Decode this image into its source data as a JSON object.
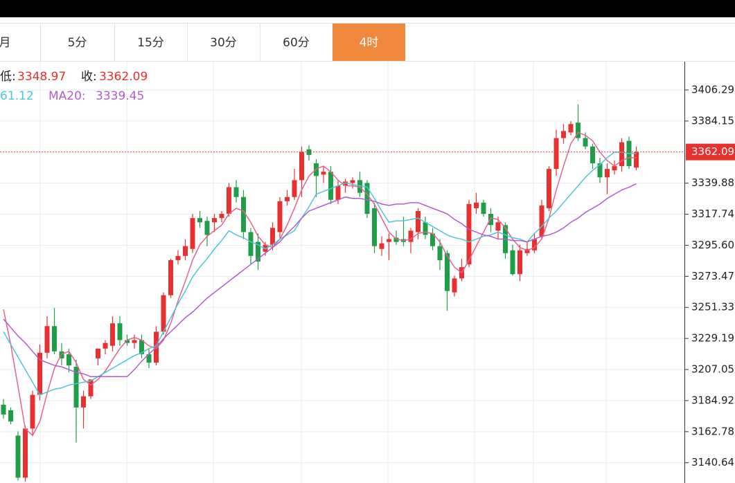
{
  "tabs": [
    "月",
    "5分",
    "15分",
    "30分",
    "60分",
    "4时"
  ],
  "active_tab": 5,
  "chart_data": {
    "type": "candlestick",
    "info": {
      "low_label": "低:",
      "close_label": "收:",
      "ma10_text": "61.12",
      "ma20_label": "MA20:"
    },
    "ylim": [
      3126.2,
      3427.0
    ],
    "yticks": [
      3406.29,
      3384.15,
      3339.88,
      3317.74,
      {
        "value": 3295.6,
        "label": "3295.60"
      },
      3273.47,
      3251.33,
      3229.19,
      3207.05,
      3184.92,
      3162.78,
      3140.64
    ],
    "grid": true,
    "up_color": "#e8312f",
    "down_color": "#1f9e48",
    "open": [
      3182,
      3178,
      3160,
      3130,
      3165,
      3189,
      3219,
      3238,
      3220,
      3218,
      3209,
      3180,
      3188,
      3215,
      3222,
      3224,
      3240,
      3228,
      3226,
      3228,
      3218,
      3212,
      3234,
      3260,
      3285,
      3288,
      3293,
      3315,
      3313,
      3312,
      3315,
      3318,
      3337,
      3330,
      3305,
      3298,
      3291,
      3296,
      3305,
      3327,
      3330,
      3342,
      3364,
      3354,
      3346,
      3348,
      3328,
      3338,
      3340,
      3342,
      3340,
      3322,
      3293,
      3298,
      3301,
      3300,
      3298,
      3305,
      3312,
      3304,
      3295,
      3290,
      3262,
      3272,
      3282,
      3322,
      3326,
      3318,
      3306,
      3310,
      3292,
      3275,
      3290,
      3292,
      3302,
      3322,
      3350,
      3372,
      3376,
      3383,
      3372,
      3366,
      3354,
      3344,
      3349,
      3352,
      3370,
      3351
    ],
    "high": [
      3186,
      3180,
      3163,
      3167,
      3192,
      3225,
      3245,
      3251,
      3226,
      3222,
      3214,
      3192,
      3200,
      3222,
      3228,
      3245,
      3245,
      3232,
      3232,
      3232,
      3222,
      3238,
      3262,
      3286,
      3292,
      3300,
      3318,
      3320,
      3316,
      3318,
      3320,
      3340,
      3342,
      3335,
      3308,
      3304,
      3298,
      3312,
      3330,
      3335,
      3350,
      3366,
      3367,
      3357,
      3352,
      3352,
      3342,
      3343,
      3344,
      3348,
      3342,
      3326,
      3302,
      3304,
      3306,
      3316,
      3308,
      3322,
      3316,
      3308,
      3300,
      3292,
      3274,
      3286,
      3328,
      3333,
      3328,
      3322,
      3316,
      3312,
      3296,
      3296,
      3298,
      3304,
      3328,
      3352,
      3378,
      3382,
      3384,
      3396,
      3376,
      3368,
      3358,
      3354,
      3356,
      3372,
      3373,
      3366
    ],
    "low": [
      3172,
      3168,
      3128,
      3127,
      3160,
      3185,
      3215,
      3218,
      3210,
      3205,
      3155,
      3165,
      3186,
      3210,
      3218,
      3220,
      3224,
      3224,
      3222,
      3215,
      3208,
      3210,
      3232,
      3258,
      3282,
      3285,
      3290,
      3308,
      3295,
      3305,
      3312,
      3316,
      3326,
      3300,
      3282,
      3278,
      3288,
      3292,
      3300,
      3324,
      3328,
      3330,
      3356,
      3330,
      3340,
      3325,
      3325,
      3333,
      3336,
      3330,
      3315,
      3290,
      3288,
      3285,
      3296,
      3295,
      3290,
      3300,
      3300,
      3292,
      3278,
      3249,
      3259,
      3270,
      3280,
      3318,
      3316,
      3305,
      3300,
      3286,
      3274,
      3270,
      3288,
      3290,
      3300,
      3320,
      3345,
      3368,
      3374,
      3370,
      3364,
      3350,
      3340,
      3332,
      3346,
      3348,
      3350,
      3348.97
    ],
    "close": [
      3175,
      3170,
      3130,
      3165,
      3189,
      3219,
      3238,
      3220,
      3215,
      3210,
      3180,
      3188,
      3200,
      3222,
      3226,
      3240,
      3228,
      3226,
      3228,
      3218,
      3212,
      3234,
      3260,
      3285,
      3288,
      3295,
      3315,
      3312,
      3303,
      3315,
      3318,
      3337,
      3330,
      3305,
      3288,
      3284,
      3296,
      3308,
      3327,
      3330,
      3342,
      3362,
      3360,
      3345,
      3348,
      3328,
      3338,
      3341,
      3342,
      3333,
      3318,
      3295,
      3297,
      3300,
      3298,
      3298,
      3306,
      3320,
      3303,
      3295,
      3285,
      3263,
      3272,
      3280,
      3325,
      3326,
      3318,
      3310,
      3312,
      3290,
      3275,
      3292,
      3293,
      3300,
      3324,
      3350,
      3372,
      3377,
      3382,
      3372,
      3366,
      3354,
      3344,
      3350,
      3352,
      3369,
      3352,
      3362.09
    ],
    "series": [
      {
        "color": "#e8618c",
        "values": [
          3250,
          3225,
          3195,
          3165,
          3160,
          3170,
          3190,
          3208,
          3218,
          3220,
          3212,
          3200,
          3196,
          3200,
          3206,
          3214,
          3222,
          3228,
          3230,
          3228,
          3224,
          3222,
          3228,
          3240,
          3256,
          3270,
          3285,
          3296,
          3302,
          3306,
          3310,
          3318,
          3322,
          3320,
          3312,
          3302,
          3296,
          3294,
          3300,
          3310,
          3322,
          3335,
          3345,
          3350,
          3352,
          3348,
          3342,
          3338,
          3338,
          3337,
          3332,
          3325,
          3315,
          3305,
          3300,
          3299,
          3300,
          3304,
          3305,
          3304,
          3298,
          3288,
          3280,
          3276,
          3285,
          3295,
          3305,
          3315,
          3314,
          3308,
          3300,
          3294,
          3292,
          3294,
          3300,
          3315,
          3335,
          3352,
          3368,
          3376,
          3374,
          3370,
          3362,
          3356,
          3352,
          3356,
          3358,
          3358
        ]
      },
      {
        "color": "#4cc6d8",
        "values": [
          3234,
          3225,
          3216,
          3207,
          3198,
          3189,
          3191,
          3193,
          3194,
          3196,
          3197,
          3198,
          3199,
          3202,
          3205,
          3208,
          3211,
          3214,
          3217,
          3219,
          3222,
          3224,
          3234,
          3244,
          3254,
          3263,
          3273,
          3280,
          3286,
          3293,
          3299,
          3306,
          3303,
          3301,
          3298,
          3296,
          3293,
          3296,
          3300,
          3303,
          3306,
          3315,
          3323,
          3332,
          3334,
          3336,
          3338,
          3340,
          3339,
          3338,
          3337,
          3329,
          3320,
          3312,
          3313,
          3313,
          3314,
          3315,
          3312,
          3309,
          3306,
          3303,
          3301,
          3300,
          3298,
          3300,
          3302,
          3303,
          3305,
          3303,
          3301,
          3300,
          3298,
          3304,
          3309,
          3315,
          3320,
          3326,
          3332,
          3338,
          3344,
          3349,
          3353,
          3358,
          3362,
          3362,
          3361,
          3361.12
        ]
      },
      {
        "name": "MA20:",
        "color": "#b25bd0",
        "values": [
          3243,
          3237,
          3231,
          3226,
          3220,
          3214,
          3212,
          3210,
          3209,
          3207,
          3205,
          3204,
          3202,
          3202,
          3202,
          3202,
          3202,
          3202,
          3207,
          3213,
          3218,
          3223,
          3229,
          3234,
          3239,
          3244,
          3248,
          3253,
          3258,
          3262,
          3266,
          3270,
          3274,
          3278,
          3282,
          3286,
          3290,
          3294,
          3298,
          3304,
          3309,
          3315,
          3320,
          3322,
          3324,
          3326,
          3328,
          3330,
          3329,
          3329,
          3328,
          3327,
          3325,
          3324,
          3325,
          3325,
          3326,
          3326,
          3324,
          3322,
          3320,
          3318,
          3314,
          3311,
          3307,
          3305,
          3303,
          3302,
          3300,
          3300,
          3299,
          3299,
          3298,
          3300,
          3302,
          3303,
          3305,
          3308,
          3312,
          3315,
          3319,
          3322,
          3325,
          3329,
          3332,
          3335,
          3337,
          3339.45
        ]
      }
    ]
  }
}
